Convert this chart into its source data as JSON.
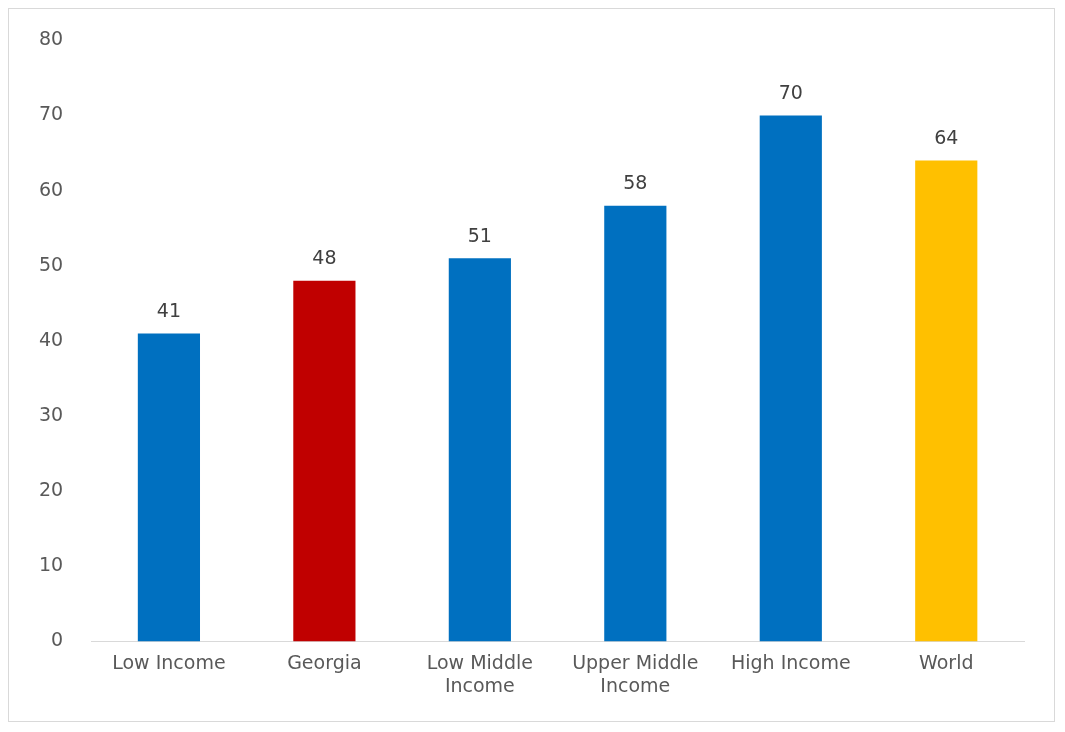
{
  "chart_data": {
    "type": "bar",
    "categories": [
      "Low Income",
      "Georgia",
      "Low Middle Income",
      "Upper Middle Income",
      "High Income",
      "World"
    ],
    "values": [
      41,
      48,
      51,
      58,
      70,
      64
    ],
    "colors": [
      "#0070c0",
      "#c00000",
      "#0070c0",
      "#0070c0",
      "#0070c0",
      "#ffc000"
    ],
    "ylim": [
      0,
      80
    ],
    "yticks": [
      0,
      10,
      20,
      30,
      40,
      50,
      60,
      70,
      80
    ],
    "grid": false,
    "legend": false,
    "data_labels": true
  }
}
